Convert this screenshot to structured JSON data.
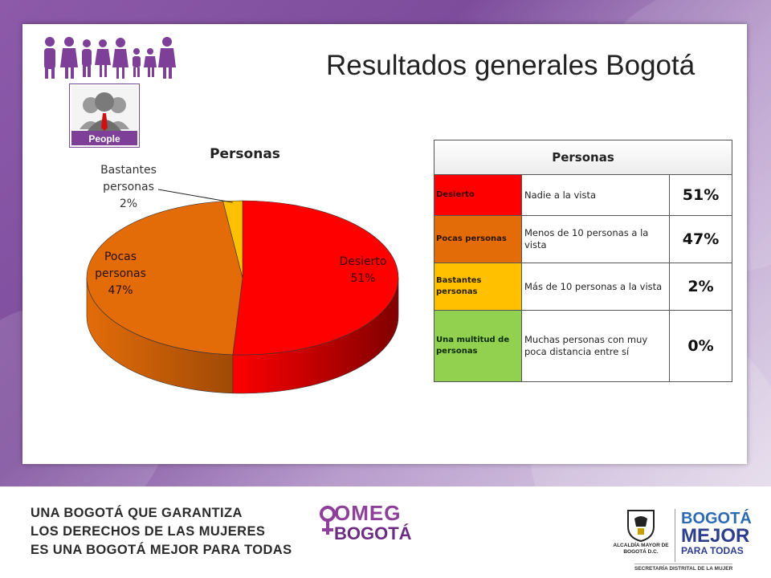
{
  "slide": {
    "title": "Resultados generales Bogotá",
    "people_logo_label": "People"
  },
  "chart_data": {
    "type": "pie",
    "title": "Personas",
    "categories": [
      "Desierto",
      "Pocas personas",
      "Bastantes personas"
    ],
    "values": [
      51,
      47,
      2
    ],
    "labels": [
      {
        "category": "Desierto",
        "text": "Desierto",
        "pct": "51%"
      },
      {
        "category": "Pocas personas",
        "text": "Pocas personas",
        "pct": "47%"
      },
      {
        "category": "Bastantes personas",
        "text": "Bastantes personas",
        "pct": "2%"
      }
    ],
    "colors": [
      "#ff0000",
      "#e36c09",
      "#ffc000"
    ],
    "style": "3d",
    "legend": "none"
  },
  "table": {
    "title": "Personas",
    "rows": [
      {
        "category": "Desierto",
        "description": "Nadie a la vista",
        "percent": "51%",
        "color": "#ff0000",
        "text_color": "#3a0000"
      },
      {
        "category": "Pocas personas",
        "description": "Menos de 10 personas a la vista",
        "percent": "47%",
        "color": "#e36c09",
        "text_color": "#2a1500"
      },
      {
        "category": "Bastantes personas",
        "description": "Más de 10 personas a la vista",
        "percent": "2%",
        "color": "#ffc000",
        "text_color": "#2a2000"
      },
      {
        "category": "Una multitud de personas",
        "description": "Muchas personas con muy poca distancia entre sí",
        "percent": "0%",
        "color": "#92d050",
        "text_color": "#0a2a00"
      }
    ]
  },
  "footer": {
    "slogan_lines": [
      "UNA BOGOTÁ QUE GARANTIZA",
      "LOS DERECHOS DE LAS MUJERES",
      "ES UNA BOGOTÁ MEJOR PARA TODAS"
    ],
    "omeg_line1": "OMEG",
    "omeg_line2": "BOGOTÁ",
    "alcaldia": "ALCALDÍA MAYOR DE BOGOTÁ D.C.",
    "bogota_mejor_1": "BOGOTÁ",
    "bogota_mejor_2": "MEJOR",
    "bogota_mejor_3": "PARA TODAS",
    "secretaria": "SECRETARÍA DISTRITAL DE LA MUJER"
  },
  "colors": {
    "purple": "#7d4d9c",
    "pie_side_shades": [
      "#b30000",
      "#a34d06"
    ]
  }
}
